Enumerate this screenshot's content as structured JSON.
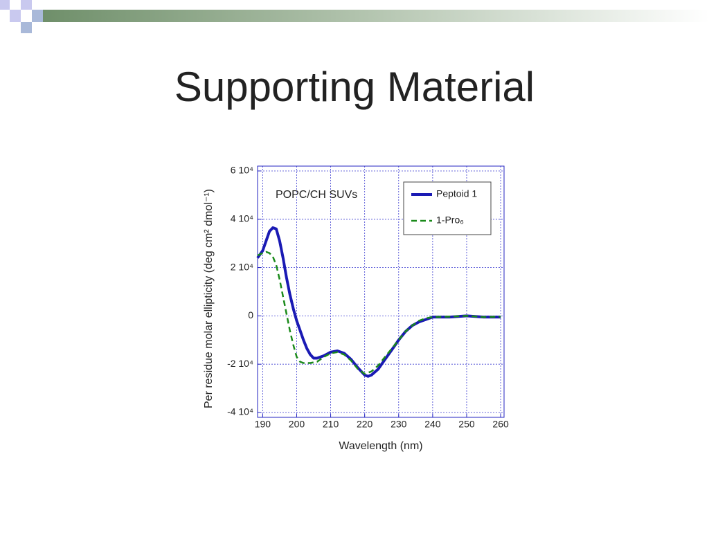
{
  "slide_title": "Supporting Material",
  "chart_data": {
    "type": "line",
    "xlabel": "Wavelength (nm)",
    "ylabel": "Per residue molar ellipticity (deg cm² dmol⁻¹)",
    "annotation": "POPC/CH SUVs",
    "xlim": [
      188.5,
      261
    ],
    "ylim": [
      -42000,
      62000
    ],
    "xticks": [
      190,
      200,
      210,
      220,
      230,
      240,
      250,
      260
    ],
    "yticks": [
      {
        "value": -40000,
        "label": "-4 10⁴"
      },
      {
        "value": -20000,
        "label": "-2 10⁴"
      },
      0,
      {
        "value": 20000,
        "label": "2 10⁴"
      },
      {
        "value": 40000,
        "label": "4 10⁴"
      },
      {
        "value": 60000,
        "label": "6 10⁴"
      }
    ],
    "grid": true,
    "legend": "upper right",
    "series": [
      {
        "name": "Peptoid 1",
        "color": "#1a1ab4",
        "line_style": "solid",
        "x": [
          188.5,
          190,
          191,
          192,
          193,
          194,
          195,
          196,
          197,
          198,
          199,
          200,
          201,
          202,
          203,
          204,
          205,
          206,
          208,
          210,
          212,
          214,
          216,
          218,
          220,
          221,
          222,
          224,
          226,
          228,
          230,
          232,
          234,
          236,
          238,
          240,
          245,
          250,
          255,
          260
        ],
        "values": [
          24000,
          27000,
          31000,
          35000,
          36500,
          36000,
          31000,
          24000,
          16000,
          9000,
          3000,
          -2000,
          -6000,
          -10000,
          -13500,
          -16000,
          -17500,
          -17500,
          -16500,
          -15000,
          -14500,
          -15500,
          -18000,
          -21500,
          -24500,
          -25000,
          -24500,
          -22000,
          -18000,
          -14000,
          -10000,
          -6500,
          -4000,
          -2500,
          -1500,
          -500,
          -500,
          0,
          -500,
          -500
        ]
      },
      {
        "name": "1-Pro₆",
        "color": "#1a8a1a",
        "line_style": "dashed",
        "x": [
          188.5,
          190,
          191,
          192,
          193,
          194,
          195,
          196,
          197,
          198,
          199,
          200,
          201,
          202,
          204,
          206,
          208,
          210,
          212,
          214,
          216,
          218,
          220,
          222,
          224,
          226,
          228,
          230,
          232,
          234,
          236,
          238,
          240,
          245,
          250,
          255,
          260
        ],
        "values": [
          25000,
          26000,
          26500,
          26000,
          24500,
          21000,
          15000,
          8000,
          1000,
          -6000,
          -12000,
          -17000,
          -19000,
          -19500,
          -19500,
          -19000,
          -17000,
          -15500,
          -15000,
          -16000,
          -18500,
          -22000,
          -24000,
          -23000,
          -20500,
          -17000,
          -13500,
          -10000,
          -6500,
          -4000,
          -2000,
          -1000,
          -500,
          -300,
          0,
          -500,
          -300
        ]
      }
    ]
  }
}
